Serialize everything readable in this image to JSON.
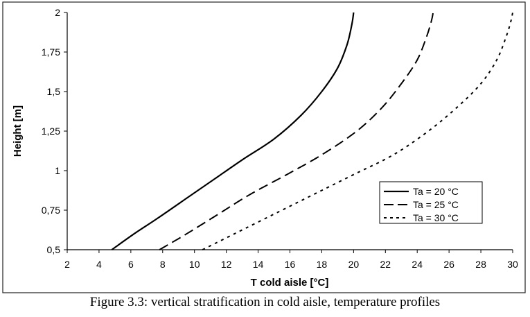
{
  "caption": "Figure 3.3: vertical stratification in cold aisle, temperature profiles",
  "chart_data": {
    "type": "line",
    "title": "",
    "xlabel": "T cold aisle [°C]",
    "ylabel": "Height [m]",
    "xlim": [
      2,
      30
    ],
    "ylim": [
      0.5,
      2
    ],
    "xticks": [
      2,
      4,
      6,
      8,
      10,
      12,
      14,
      16,
      18,
      20,
      22,
      24,
      26,
      28,
      30
    ],
    "xtick_labels": [
      "2",
      "4",
      "6",
      "8",
      "10",
      "12",
      "14",
      "16",
      "18",
      "20",
      "22",
      "24",
      "26",
      "28",
      "30"
    ],
    "yticks": [
      0.5,
      0.75,
      1,
      1.25,
      1.5,
      1.75,
      2
    ],
    "ytick_labels": [
      "0,5",
      "0,75",
      "1",
      "1,25",
      "1,5",
      "1,75",
      "2"
    ],
    "grid": false,
    "legend_position": "bottom-right",
    "series": [
      {
        "name": "Ta = 20 °C",
        "style": "solid",
        "color": "#000000",
        "points": [
          [
            4.8,
            0.5
          ],
          [
            6.2,
            0.6
          ],
          [
            7.7,
            0.7
          ],
          [
            9.5,
            0.825
          ],
          [
            11.3,
            0.95
          ],
          [
            13.1,
            1.075
          ],
          [
            15.0,
            1.2
          ],
          [
            16.7,
            1.35
          ],
          [
            18.0,
            1.5
          ],
          [
            19.0,
            1.65
          ],
          [
            19.6,
            1.8
          ],
          [
            19.9,
            1.93
          ],
          [
            20.0,
            2.0
          ]
        ]
      },
      {
        "name": "Ta = 25 °C",
        "style": "dashed",
        "color": "#000000",
        "points": [
          [
            7.8,
            0.5
          ],
          [
            9.5,
            0.6
          ],
          [
            11.5,
            0.725
          ],
          [
            13.5,
            0.85
          ],
          [
            15.8,
            0.975
          ],
          [
            18.0,
            1.1
          ],
          [
            20.2,
            1.25
          ],
          [
            21.8,
            1.4
          ],
          [
            23.0,
            1.55
          ],
          [
            24.0,
            1.7
          ],
          [
            24.6,
            1.85
          ],
          [
            24.9,
            1.95
          ],
          [
            25.0,
            2.0
          ]
        ]
      },
      {
        "name": "Ta = 30 °C",
        "style": "dotted",
        "color": "#000000",
        "points": [
          [
            10.5,
            0.5
          ],
          [
            12.5,
            0.6
          ],
          [
            15.0,
            0.725
          ],
          [
            17.5,
            0.85
          ],
          [
            20.0,
            0.975
          ],
          [
            22.5,
            1.1
          ],
          [
            24.7,
            1.25
          ],
          [
            26.5,
            1.4
          ],
          [
            28.0,
            1.55
          ],
          [
            29.0,
            1.7
          ],
          [
            29.6,
            1.85
          ],
          [
            29.9,
            1.95
          ],
          [
            30.0,
            2.0
          ]
        ]
      }
    ]
  }
}
